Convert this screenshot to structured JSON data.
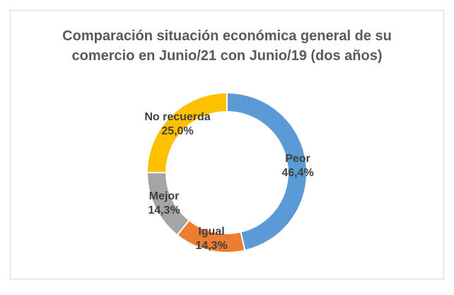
{
  "chart_data": {
    "type": "pie",
    "subtype": "donut",
    "title_line1": "Comparación situación económica general de su",
    "title_line2": "comercio en Junio/21 con Junio/19 (dos años)",
    "slices": [
      {
        "name": "Peor",
        "label": "46,4%",
        "value": 46.4,
        "color": "#5b9bd5"
      },
      {
        "name": "Igual",
        "label": "14,3%",
        "value": 14.3,
        "color": "#ed7d31"
      },
      {
        "name": "Mejor",
        "label": "14,3%",
        "value": 14.3,
        "color": "#a5a5a5"
      },
      {
        "name": "No recuerda",
        "label": "25,0%",
        "value": 25.0,
        "color": "#ffc000"
      }
    ],
    "legend": "none"
  }
}
